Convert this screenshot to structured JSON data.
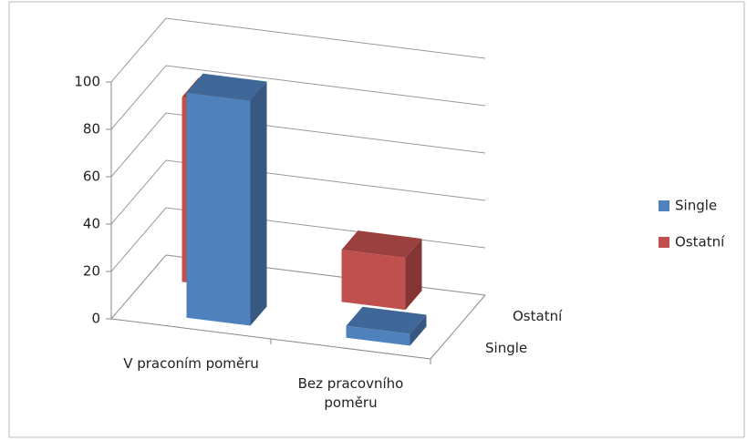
{
  "chart_data": {
    "type": "bar3d",
    "categories": [
      "V praconím poměru",
      "Bez pracovního poměru"
    ],
    "series": [
      {
        "name": "Single",
        "color": "#4f81bd",
        "values": [
          95,
          5
        ]
      },
      {
        "name": "Ostatní",
        "color": "#c0504d",
        "values": [
          78,
          22
        ]
      }
    ],
    "ylim": [
      0,
      100
    ],
    "yticks": [
      0,
      20,
      40,
      60,
      80,
      100
    ],
    "grid": true,
    "legend": "right"
  }
}
